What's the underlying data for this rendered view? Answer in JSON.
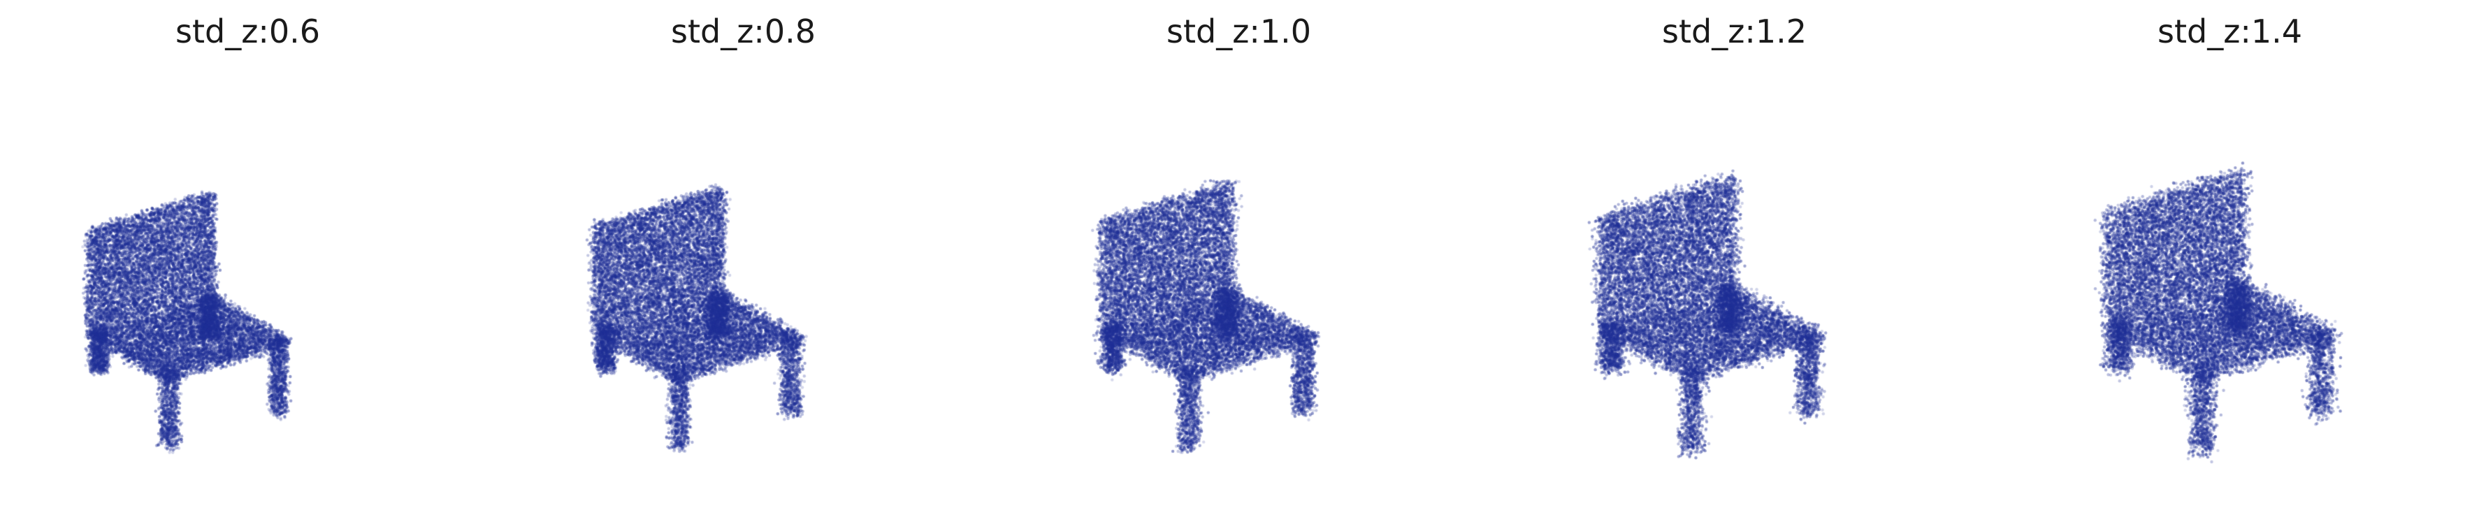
{
  "figure": {
    "point_color": "#1f2f96",
    "background": "#ffffff",
    "panels": [
      {
        "title": "std_z:0.6",
        "std_z": 0.6,
        "subject": "chair point cloud"
      },
      {
        "title": "std_z:0.8",
        "std_z": 0.8,
        "subject": "chair point cloud"
      },
      {
        "title": "std_z:1.0",
        "std_z": 1.0,
        "subject": "chair point cloud"
      },
      {
        "title": "std_z:1.2",
        "std_z": 1.2,
        "subject": "chair point cloud"
      },
      {
        "title": "std_z:1.4",
        "std_z": 1.4,
        "subject": "chair point cloud"
      }
    ]
  }
}
